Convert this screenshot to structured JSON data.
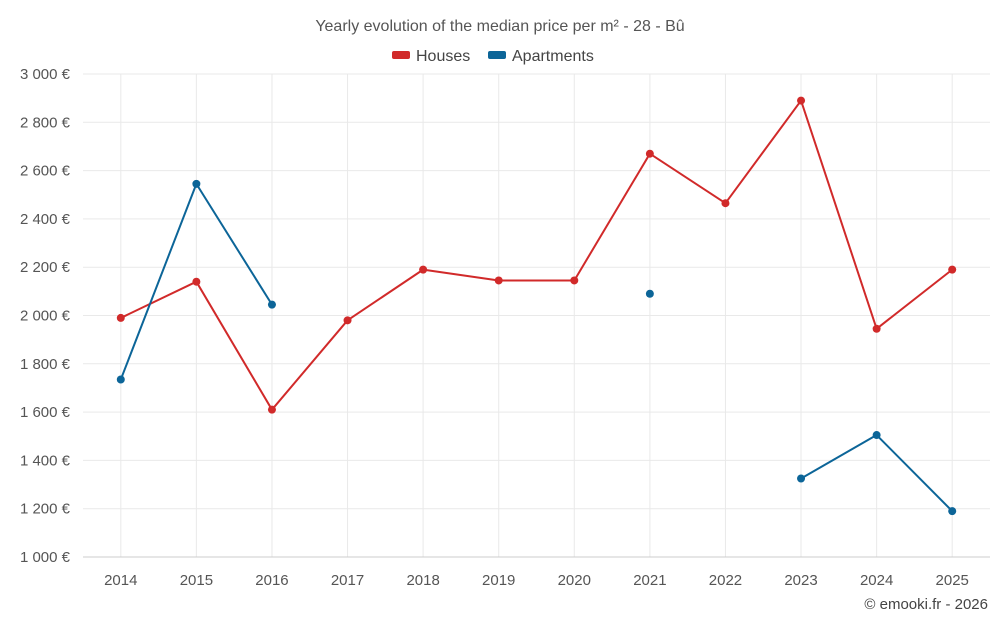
{
  "chart_data": {
    "type": "line",
    "title": "Yearly evolution of the median price per m² - 28 - Bû",
    "x": [
      "2014",
      "2015",
      "2016",
      "2017",
      "2018",
      "2019",
      "2020",
      "2021",
      "2022",
      "2023",
      "2024",
      "2025"
    ],
    "ylim": [
      1000,
      3000
    ],
    "yticks": [
      1000,
      1200,
      1400,
      1600,
      1800,
      2000,
      2200,
      2400,
      2600,
      2800,
      3000
    ],
    "ytick_labels": [
      "1 000 €",
      "1 200 €",
      "1 400 €",
      "1 600 €",
      "1 800 €",
      "2 000 €",
      "2 200 €",
      "2 400 €",
      "2 600 €",
      "2 800 €",
      "3 000 €"
    ],
    "grid": true,
    "legend_position": "top-center",
    "series": [
      {
        "name": "Houses",
        "color": "#d12a2a",
        "values": [
          1990,
          2140,
          1610,
          1980,
          2190,
          2145,
          2145,
          2670,
          2465,
          2890,
          1945,
          2190
        ]
      },
      {
        "name": "Apartments",
        "color": "#0c6598",
        "values": [
          1735,
          2545,
          2045,
          null,
          null,
          null,
          null,
          2090,
          null,
          1325,
          1505,
          1190
        ]
      }
    ],
    "credit": "© emooki.fr - 2026"
  }
}
